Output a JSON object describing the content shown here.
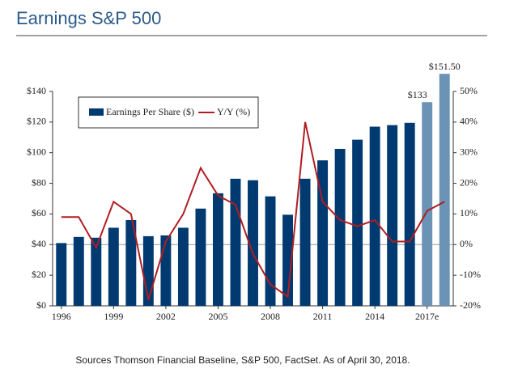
{
  "chart_data": {
    "type": "bar_line",
    "title": "Earnings S&P 500",
    "source": "Sources Thomson Financial Baseline, S&P 500, FactSet. As of April 30, 2018.",
    "categories": [
      "1996",
      null,
      null,
      "1999",
      null,
      null,
      "2002",
      null,
      null,
      "2005",
      null,
      null,
      "2008",
      null,
      null,
      "2011",
      null,
      null,
      "2014",
      null,
      null,
      "2017e",
      null
    ],
    "series": [
      {
        "name": "Earnings Per Share ($)",
        "type": "bar",
        "color": "#003a70",
        "colors": [
          "#003a70",
          "#003a70",
          "#003a70",
          "#003a70",
          "#003a70",
          "#003a70",
          "#003a70",
          "#003a70",
          "#003a70",
          "#003a70",
          "#003a70",
          "#003a70",
          "#003a70",
          "#003a70",
          "#003a70",
          "#003a70",
          "#003a70",
          "#003a70",
          "#003a70",
          "#003a70",
          "#003a70",
          "#6a93b5",
          "#6a93b5"
        ],
        "values": [
          41,
          45,
          44.5,
          51,
          56,
          45.5,
          46,
          51,
          63.5,
          73.5,
          83,
          82,
          71.5,
          59.5,
          83,
          95,
          102.5,
          108.5,
          117,
          118,
          119.5,
          133,
          151.5
        ],
        "value_labels": [
          null,
          null,
          null,
          null,
          null,
          null,
          null,
          null,
          null,
          null,
          null,
          null,
          null,
          null,
          null,
          null,
          null,
          null,
          null,
          null,
          null,
          "$133",
          "$151.50"
        ]
      },
      {
        "name": "Y/Y (%)",
        "type": "line",
        "axis": "y2",
        "color": "#b01e23",
        "values": [
          9,
          9,
          -1,
          14,
          10,
          -18,
          1,
          10,
          25,
          16,
          13,
          -3,
          -13,
          -17,
          40,
          14,
          8,
          6,
          8,
          1,
          1,
          11,
          14
        ]
      }
    ],
    "ylim": [
      0,
      140
    ],
    "yticks": [
      {
        "value": 0,
        "label": "$0"
      },
      {
        "value": 20,
        "label": "$20"
      },
      {
        "value": 40,
        "label": "$40"
      },
      {
        "value": 60,
        "label": "$60"
      },
      {
        "value": 80,
        "label": "$80"
      },
      {
        "value": 100,
        "label": "$100"
      },
      {
        "value": 120,
        "label": "$120"
      },
      {
        "value": 140,
        "label": "$140"
      }
    ],
    "y2lim": [
      -20,
      50
    ],
    "y2ticks": [
      {
        "value": -20,
        "label": "-20%"
      },
      {
        "value": -10,
        "label": "-10%"
      },
      {
        "value": 0,
        "label": "0%"
      },
      {
        "value": 10,
        "label": "10%"
      },
      {
        "value": 20,
        "label": "20%"
      },
      {
        "value": 30,
        "label": "30%"
      },
      {
        "value": 40,
        "label": "40%"
      },
      {
        "value": 50,
        "label": "50%"
      }
    ]
  }
}
